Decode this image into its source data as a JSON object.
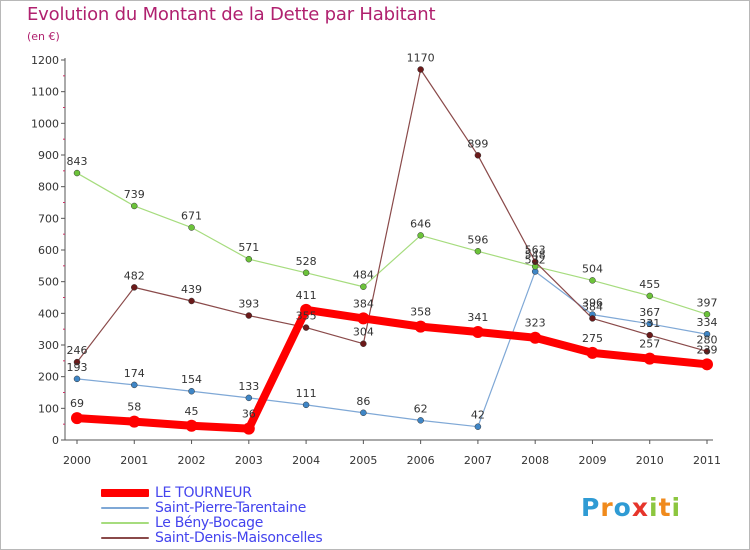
{
  "title": "Evolution du Montant de la Dette par Habitant",
  "subtitle": "(en €)",
  "logo": {
    "letters": [
      "P",
      "r",
      "o",
      "x",
      "i",
      "t",
      "i"
    ],
    "colors": [
      "#2f9bd4",
      "#f08a1c",
      "#2f9bd4",
      "#e6352b",
      "#8cc63f",
      "#f08a1c",
      "#8cc63f"
    ]
  },
  "chart_data": {
    "type": "line",
    "x": [
      "2000",
      "2001",
      "2002",
      "2003",
      "2004",
      "2005",
      "2006",
      "2007",
      "2008",
      "2009",
      "2010",
      "2011"
    ],
    "ylim": [
      0,
      1200
    ],
    "yticks": [
      "0",
      "100",
      "200",
      "300",
      "400",
      "500",
      "600",
      "700",
      "800",
      "900",
      "1000",
      "1100",
      "1200"
    ],
    "grid": false,
    "legend_position": "bottom-left",
    "series": [
      {
        "name": "LE TOURNEUR",
        "color": "#ff0000",
        "marker_color": "#ff0000",
        "values": [
          69,
          58,
          45,
          36,
          411,
          384,
          358,
          341,
          323,
          275,
          257,
          239
        ],
        "labels": [
          "69",
          "58",
          "45",
          "36",
          "411",
          "384",
          "358",
          "341",
          "323",
          "275",
          "257",
          "239"
        ]
      },
      {
        "name": "Saint-Pierre-Tarentaine",
        "color": "#7fa8d6",
        "marker_color": "#3f86c6",
        "values": [
          193,
          174,
          154,
          133,
          111,
          86,
          62,
          42,
          532,
          396,
          367,
          334
        ],
        "labels": [
          "193",
          "174",
          "154",
          "133",
          "111",
          "86",
          "62",
          "42",
          "532",
          "396",
          "367",
          "334"
        ]
      },
      {
        "name": "Le Bény-Bocage",
        "color": "#a6dc7e",
        "marker_color": "#6cc33a",
        "values": [
          843,
          739,
          671,
          571,
          528,
          484,
          646,
          596,
          548,
          504,
          455,
          397
        ],
        "labels": [
          "843",
          "739",
          "671",
          "571",
          "528",
          "484",
          "646",
          "596",
          "548",
          "504",
          "455",
          "397"
        ]
      },
      {
        "name": "Saint-Denis-Maisoncelles",
        "color": "#8a4a4a",
        "marker_color": "#6b1a1a",
        "values": [
          246,
          482,
          439,
          393,
          355,
          304,
          1170,
          899,
          563,
          384,
          331,
          280
        ],
        "labels": [
          "246",
          "482",
          "439",
          "393",
          "355",
          "304",
          "1170",
          "899",
          "563",
          "384",
          "331",
          "280"
        ]
      }
    ]
  }
}
